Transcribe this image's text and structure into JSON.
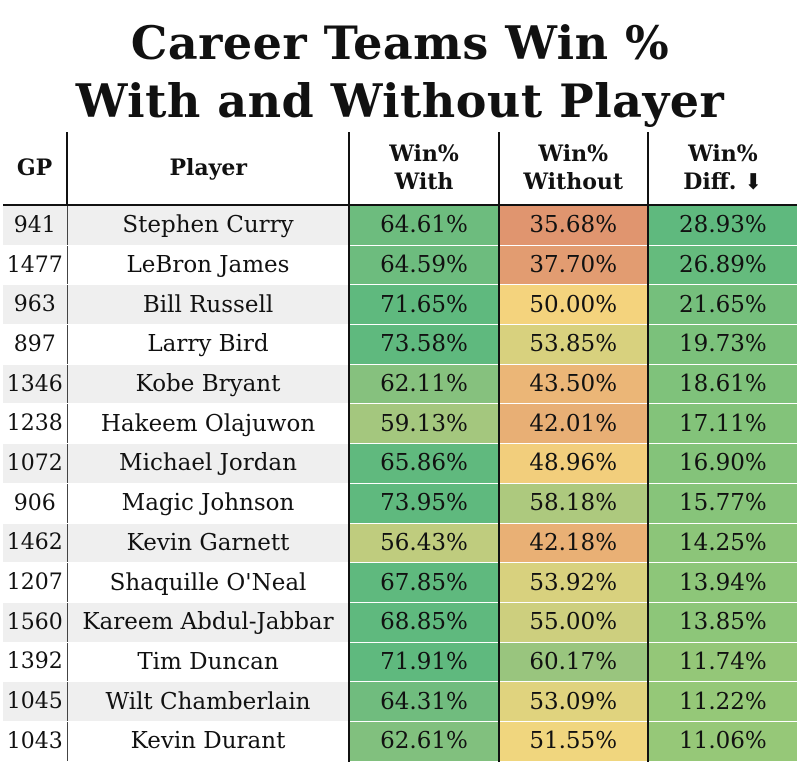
{
  "title_line1": "Career Teams Win %",
  "title_line2": "With and Without Player",
  "headers": {
    "gp": "GP",
    "player": "Player",
    "with_1": "Win%",
    "with_2": "With",
    "without_1": "Win%",
    "without_2": "Without",
    "diff_1": "Win%",
    "diff_2": "Diff. ⬇"
  },
  "rows": [
    {
      "gp": "941",
      "player": "Stephen Curry",
      "with": "64.61%",
      "without": "35.68%",
      "diff": "28.93%"
    },
    {
      "gp": "1477",
      "player": "LeBron James",
      "with": "64.59%",
      "without": "37.70%",
      "diff": "26.89%"
    },
    {
      "gp": "963",
      "player": "Bill Russell",
      "with": "71.65%",
      "without": "50.00%",
      "diff": "21.65%"
    },
    {
      "gp": "897",
      "player": "Larry Bird",
      "with": "73.58%",
      "without": "53.85%",
      "diff": "19.73%"
    },
    {
      "gp": "1346",
      "player": "Kobe Bryant",
      "with": "62.11%",
      "without": "43.50%",
      "diff": "18.61%"
    },
    {
      "gp": "1238",
      "player": "Hakeem Olajuwon",
      "with": "59.13%",
      "without": "42.01%",
      "diff": "17.11%"
    },
    {
      "gp": "1072",
      "player": "Michael Jordan",
      "with": "65.86%",
      "without": "48.96%",
      "diff": "16.90%"
    },
    {
      "gp": "906",
      "player": "Magic Johnson",
      "with": "73.95%",
      "without": "58.18%",
      "diff": "15.77%"
    },
    {
      "gp": "1462",
      "player": "Kevin Garnett",
      "with": "56.43%",
      "without": "42.18%",
      "diff": "14.25%"
    },
    {
      "gp": "1207",
      "player": "Shaquille O'Neal",
      "with": "67.85%",
      "without": "53.92%",
      "diff": "13.94%"
    },
    {
      "gp": "1560",
      "player": "Kareem Abdul-Jabbar",
      "with": "68.85%",
      "without": "55.00%",
      "diff": "13.85%"
    },
    {
      "gp": "1392",
      "player": "Tim Duncan",
      "with": "71.91%",
      "without": "60.17%",
      "diff": "11.74%"
    },
    {
      "gp": "1045",
      "player": "Wilt Chamberlain",
      "with": "64.31%",
      "without": "53.09%",
      "diff": "11.22%"
    },
    {
      "gp": "1043",
      "player": "Kevin Durant",
      "with": "62.61%",
      "without": "51.55%",
      "diff": "11.06%"
    }
  ],
  "colors": {
    "low": "#e0956f",
    "mid": "#f5d77e",
    "high": "#5fb97e"
  },
  "chart_data": {
    "type": "table",
    "title": "Career Teams Win % With and Without Player",
    "columns": [
      "GP",
      "Player",
      "Win% With",
      "Win% Without",
      "Win% Diff."
    ],
    "sort": "Win% Diff. descending",
    "color_scale": "red-yellow-green heatmap on Win% columns",
    "gp": [
      941,
      1477,
      963,
      897,
      1346,
      1238,
      1072,
      906,
      1462,
      1207,
      1560,
      1392,
      1045,
      1043
    ],
    "players": [
      "Stephen Curry",
      "LeBron James",
      "Bill Russell",
      "Larry Bird",
      "Kobe Bryant",
      "Hakeem Olajuwon",
      "Michael Jordan",
      "Magic Johnson",
      "Kevin Garnett",
      "Shaquille O'Neal",
      "Kareem Abdul-Jabbar",
      "Tim Duncan",
      "Wilt Chamberlain",
      "Kevin Durant"
    ],
    "win_pct_with": [
      64.61,
      64.59,
      71.65,
      73.58,
      62.11,
      59.13,
      65.86,
      73.95,
      56.43,
      67.85,
      68.85,
      71.91,
      64.31,
      62.61
    ],
    "win_pct_without": [
      35.68,
      37.7,
      50.0,
      53.85,
      43.5,
      42.01,
      48.96,
      58.18,
      42.18,
      53.92,
      55.0,
      60.17,
      53.09,
      51.55
    ],
    "win_pct_diff": [
      28.93,
      26.89,
      21.65,
      19.73,
      18.61,
      17.11,
      16.9,
      15.77,
      14.25,
      13.94,
      13.85,
      11.74,
      11.22,
      11.06
    ]
  }
}
